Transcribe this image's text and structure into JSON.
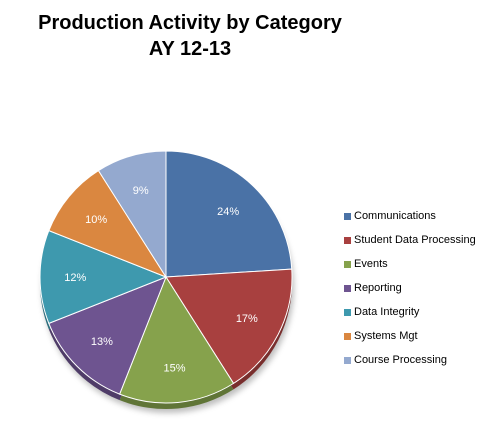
{
  "chart_data": {
    "type": "pie",
    "title": "Production Activity by Category",
    "subtitle": "AY 12-13",
    "categories": [
      "Communications",
      "Student Data Processing",
      "Events",
      "Reporting",
      "Data Integrity",
      "Systems Mgt",
      "Course Processing"
    ],
    "values": [
      24,
      17,
      15,
      13,
      12,
      10,
      9
    ],
    "value_labels": [
      "24%",
      "17%",
      "15%",
      "13%",
      "12%",
      "10%",
      "9%"
    ],
    "colors": [
      "#4A72A6",
      "#A8403F",
      "#86A24C",
      "#6E5490",
      "#3E99AE",
      "#DA8740",
      "#94A9CF"
    ],
    "legend_position": "right"
  }
}
